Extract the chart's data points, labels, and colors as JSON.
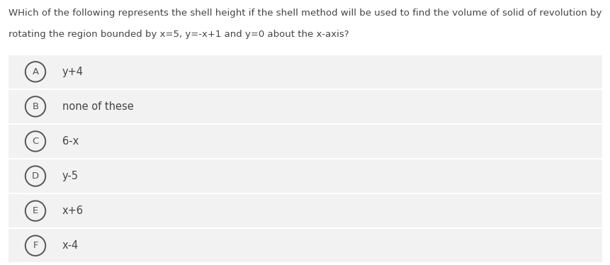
{
  "title_line1": "WHich of the following represents the shell height if the shell method will be used to find the volume of solid of revolution by",
  "title_line2": "rotating the region bounded by x=5, y=-x+1 and y=0 about the x-axis?",
  "options": [
    {
      "label": "A",
      "text": "y+4"
    },
    {
      "label": "B",
      "text": "none of these"
    },
    {
      "label": "C",
      "text": "6-x"
    },
    {
      "label": "D",
      "text": "y-5"
    },
    {
      "label": "E",
      "text": "x+6"
    },
    {
      "label": "F",
      "text": "x-4"
    }
  ],
  "bg_color": "#ffffff",
  "option_bg_color": "#f2f2f2",
  "text_color": "#444444",
  "circle_edge_color": "#555555",
  "title_fontsize": 9.5,
  "option_fontsize": 10.5,
  "label_fontsize": 9.5
}
